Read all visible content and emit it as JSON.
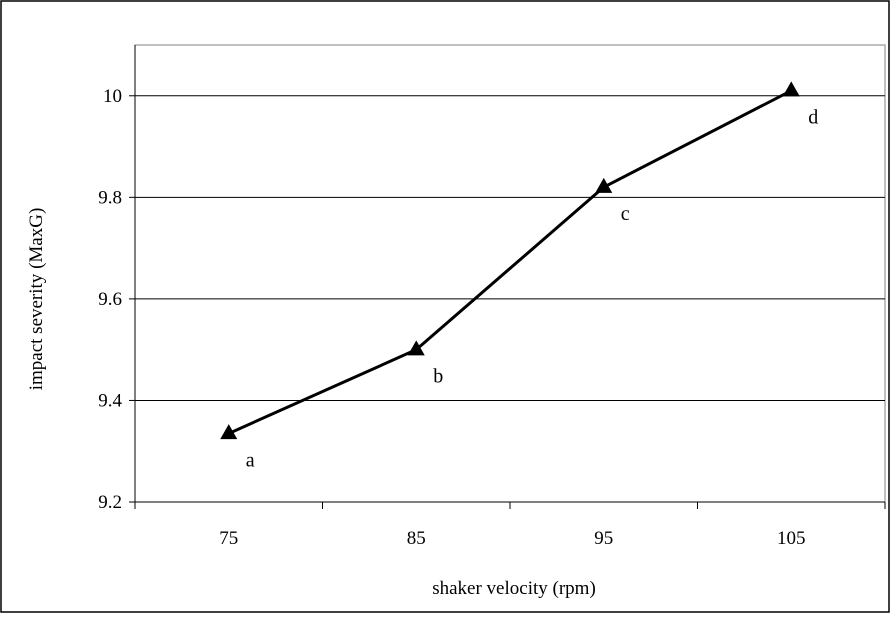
{
  "chart_data": {
    "type": "line",
    "categories": [
      "75",
      "85",
      "95",
      "105"
    ],
    "x": [
      75,
      85,
      95,
      105
    ],
    "series": [
      {
        "values": [
          9.335,
          9.5,
          9.82,
          10.01
        ],
        "point_labels": [
          "a",
          "b",
          "c",
          "d"
        ],
        "marker": "triangle",
        "color": "#000000"
      }
    ],
    "title": "",
    "xlabel": "shaker velocity (rpm)",
    "ylabel": "impact severity (MaxG)",
    "ylim": [
      9.2,
      10.1
    ],
    "yticks": [
      9.2,
      9.4,
      9.6,
      9.8,
      10
    ],
    "ytick_labels": [
      "9.2",
      "9.4",
      "9.6",
      "9.8",
      "10"
    ],
    "grid": "horizontal",
    "legend": "none"
  }
}
